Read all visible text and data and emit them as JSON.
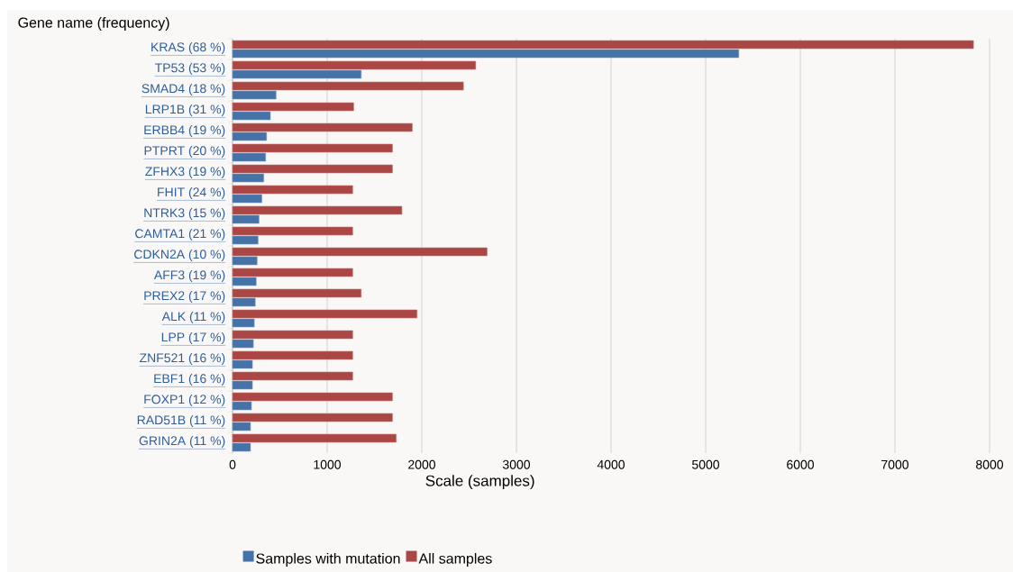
{
  "chart_data": {
    "type": "bar",
    "orientation": "horizontal",
    "ylabel": "Gene name (frequency)",
    "xlabel": "Scale (samples)",
    "categories": [
      "KRAS (68 %)",
      "TP53 (53 %)",
      "SMAD4 (18 %)",
      "LRP1B (31 %)",
      "ERBB4 (19 %)",
      "PTPRT (20 %)",
      "ZFHX3 (19 %)",
      "FHIT (24 %)",
      "NTRK3 (15 %)",
      "CAMTA1 (21 %)",
      "CDKN2A (10 %)",
      "AFF3 (19 %)",
      "PREX2 (17 %)",
      "ALK (11 %)",
      "LPP (17 %)",
      "ZNF521 (16 %)",
      "EBF1 (16 %)",
      "FOXP1 (12 %)",
      "RAD51B (11 %)",
      "GRIN2A (11 %)"
    ],
    "series": [
      {
        "name": "Samples with mutation",
        "color": "#4572a7",
        "values": [
          5350,
          1360,
          460,
          400,
          360,
          350,
          330,
          310,
          280,
          270,
          260,
          250,
          240,
          230,
          220,
          210,
          210,
          200,
          190,
          190
        ]
      },
      {
        "name": "All samples",
        "color": "#aa4643",
        "values": [
          7830,
          2570,
          2440,
          1280,
          1900,
          1690,
          1690,
          1270,
          1790,
          1270,
          2690,
          1270,
          1360,
          1950,
          1270,
          1270,
          1270,
          1690,
          1690,
          1730
        ]
      }
    ],
    "xlim": [
      0,
      8000
    ],
    "xticks": [
      0,
      1000,
      2000,
      3000,
      4000,
      5000,
      6000,
      7000,
      8000
    ],
    "grid": "x",
    "legend": "bottom"
  }
}
